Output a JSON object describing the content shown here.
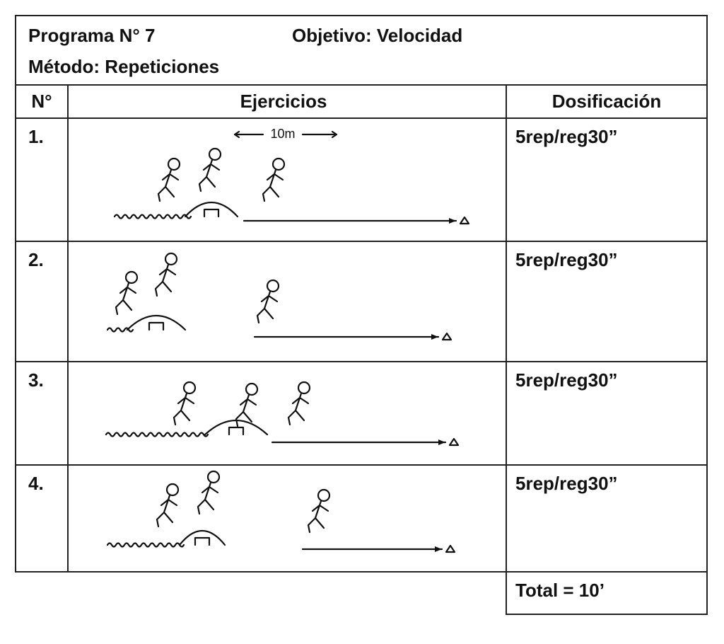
{
  "header": {
    "program": "Programa N° 7",
    "objective": "Objetivo: Velocidad",
    "method": "Método: Repeticiones"
  },
  "table": {
    "columns": [
      "N°",
      "Ejercicios",
      "Dosificación"
    ],
    "rows": [
      [
        "1.",
        "5rep/reg30”"
      ],
      [
        "2.",
        "5rep/reg30”"
      ],
      [
        "3.",
        "5rep/reg30”"
      ],
      [
        "4.",
        "5rep/reg30”"
      ]
    ],
    "distance_label": "10m",
    "total": "Total = 10’"
  }
}
